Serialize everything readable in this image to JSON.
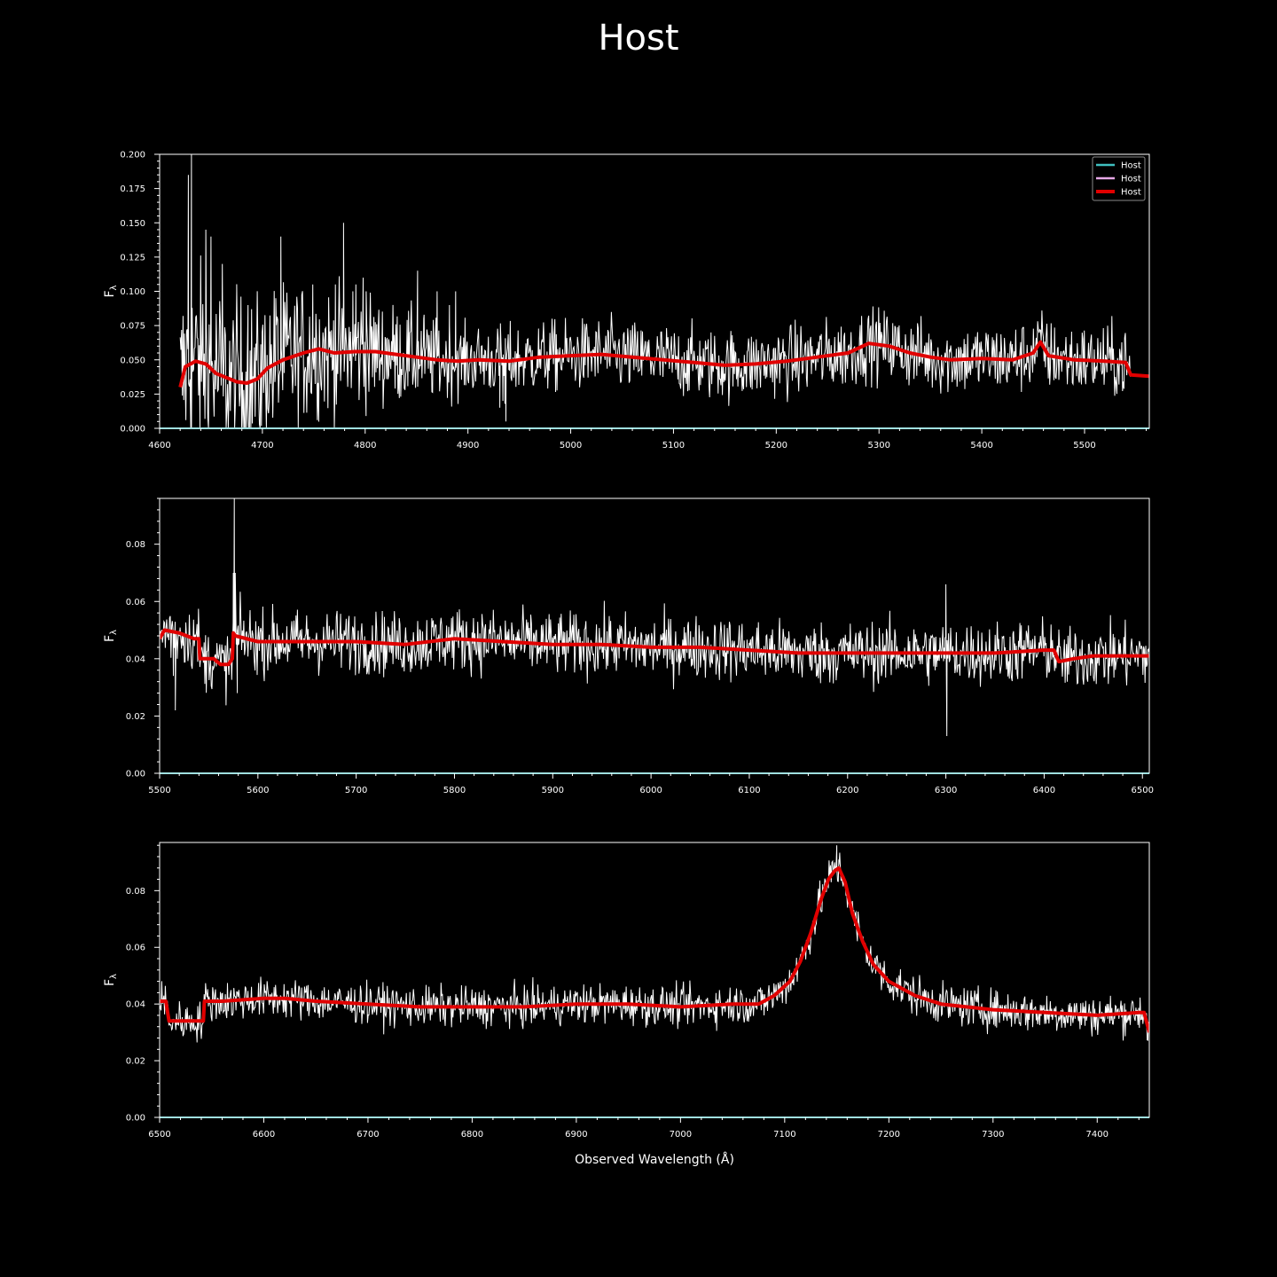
{
  "title": "Host",
  "colors": {
    "background": "#000000",
    "observed": "#ffffff",
    "model": "#e10000",
    "host_cyan": "#3fc0c0",
    "host_pink": "#e6a8e6"
  },
  "legend": {
    "location": "top-right",
    "entries": [
      {
        "label": "Host",
        "color": "#3fc0c0"
      },
      {
        "label": "Host",
        "color": "#e6a8e6"
      },
      {
        "label": "Host",
        "color": "#e10000"
      }
    ]
  },
  "chart_data": [
    {
      "type": "line",
      "xlabel": "",
      "ylabel": "F_λ",
      "xlim": [
        4600,
        5563
      ],
      "ylim": [
        0,
        0.2
      ],
      "xticks": [
        4600,
        4700,
        4800,
        4900,
        5000,
        5100,
        5200,
        5300,
        5400,
        5500
      ],
      "xtick_labels": [
        "4600",
        "4700",
        "4800",
        "4900",
        "5000",
        "5100",
        "5200",
        "5300",
        "5400",
        "5500"
      ],
      "yticks": [
        0,
        0.025,
        0.05,
        0.075,
        0.1,
        0.125,
        0.15,
        0.175,
        0.2
      ],
      "ytick_labels": [
        "0.000",
        "0.025",
        "0.050",
        "0.075",
        "0.100",
        "0.125",
        "0.150",
        "0.175",
        "0.200"
      ],
      "data_start": 4620,
      "show_legend": true,
      "series": [
        {
          "color": "#e10000",
          "x": [
            4620,
            4625,
            4635,
            4645,
            4655,
            4665,
            4675,
            4685,
            4695,
            4705,
            4720,
            4740,
            4755,
            4770,
            4790,
            4810,
            4830,
            4850,
            4870,
            4890,
            4910,
            4940,
            4970,
            5000,
            5030,
            5060,
            5090,
            5120,
            5150,
            5180,
            5210,
            5240,
            5270,
            5290,
            5310,
            5330,
            5350,
            5370,
            5400,
            5430,
            5450,
            5457,
            5465,
            5490,
            5520,
            5540,
            5545,
            5563
          ],
          "y": [
            0.03,
            0.045,
            0.049,
            0.047,
            0.04,
            0.037,
            0.034,
            0.033,
            0.036,
            0.044,
            0.05,
            0.055,
            0.058,
            0.055,
            0.056,
            0.056,
            0.054,
            0.052,
            0.05,
            0.049,
            0.05,
            0.049,
            0.052,
            0.053,
            0.054,
            0.052,
            0.05,
            0.048,
            0.046,
            0.047,
            0.049,
            0.052,
            0.055,
            0.062,
            0.06,
            0.055,
            0.052,
            0.05,
            0.051,
            0.05,
            0.055,
            0.063,
            0.053,
            0.05,
            0.049,
            0.048,
            0.039,
            0.038
          ]
        },
        {
          "color": "#ffffff",
          "x": [
            4628,
            4631,
            4645,
            4650,
            4661,
            4675,
            4686,
            4713,
            4718,
            4749,
            4771,
            4779,
            4788,
            4791,
            4798,
            4801,
            4807,
            4823,
            4851,
            4857,
            4870,
            4882,
            4888,
            4931,
            4934,
            4936,
            4937
          ],
          "y": [
            0.185,
            0.2,
            0.145,
            0.14,
            0.12,
            0.1,
            0.09,
            0.095,
            0.14,
            0.105,
            0.105,
            0.15,
            0.1,
            0.105,
            0.11,
            0.1,
            0.07,
            0.065,
            0.115,
            0.08,
            0.1,
            0.09,
            0.1,
            0.015,
            0.02,
            0.018,
            0.005
          ]
        }
      ]
    },
    {
      "type": "line",
      "xlabel": "",
      "ylabel": "F_λ",
      "xlim": [
        5500,
        6507
      ],
      "ylim": [
        0,
        0.096
      ],
      "xticks": [
        5500,
        5600,
        5700,
        5800,
        5900,
        6000,
        6100,
        6200,
        6300,
        6400,
        6500
      ],
      "xtick_labels": [
        "5500",
        "5600",
        "5700",
        "5800",
        "5900",
        "6000",
        "6100",
        "6200",
        "6300",
        "6400",
        "6500"
      ],
      "yticks": [
        0,
        0.02,
        0.04,
        0.06,
        0.08
      ],
      "ytick_labels": [
        "0.00",
        "0.02",
        "0.04",
        "0.06",
        "0.08"
      ],
      "data_start": 5500,
      "show_legend": false,
      "series": [
        {
          "color": "#e10000",
          "x": [
            5500,
            5505,
            5520,
            5535,
            5540,
            5541,
            5555,
            5562,
            5570,
            5574,
            5575,
            5577,
            5600,
            5650,
            5700,
            5750,
            5800,
            5850,
            5900,
            5950,
            6000,
            6050,
            6100,
            6150,
            6200,
            6250,
            6300,
            6350,
            6400,
            6410,
            6415,
            6430,
            6450,
            6500,
            6507
          ],
          "y": [
            0.047,
            0.05,
            0.049,
            0.047,
            0.047,
            0.04,
            0.04,
            0.038,
            0.038,
            0.04,
            0.049,
            0.048,
            0.046,
            0.046,
            0.046,
            0.045,
            0.047,
            0.046,
            0.045,
            0.045,
            0.044,
            0.044,
            0.043,
            0.042,
            0.042,
            0.042,
            0.042,
            0.042,
            0.043,
            0.043,
            0.039,
            0.04,
            0.041,
            0.041,
            0.041
          ]
        },
        {
          "color": "#ffffff",
          "x": [
            5514,
            5516,
            5518,
            5575,
            5576,
            5577,
            5578,
            5579,
            5580,
            6299,
            6300,
            6301
          ],
          "y": [
            0.034,
            0.022,
            0.04,
            0.07,
            0.096,
            0.07,
            0.045,
            0.028,
            0.045,
            0.04,
            0.066,
            0.013
          ]
        }
      ]
    },
    {
      "type": "line",
      "xlabel": "Observed Wavelength (Å)",
      "ylabel": "F_λ",
      "xlim": [
        6500,
        7450
      ],
      "ylim": [
        0,
        0.097
      ],
      "xticks": [
        6500,
        6600,
        6700,
        6800,
        6900,
        7000,
        7100,
        7200,
        7300,
        7400
      ],
      "xtick_labels": [
        "6500",
        "6600",
        "6700",
        "6800",
        "6900",
        "7000",
        "7100",
        "7200",
        "7300",
        "7400"
      ],
      "yticks": [
        0,
        0.02,
        0.04,
        0.06,
        0.08
      ],
      "ytick_labels": [
        "0.00",
        "0.02",
        "0.04",
        "0.06",
        "0.08"
      ],
      "data_start": 6500,
      "show_legend": false,
      "series": [
        {
          "color": "#e10000",
          "x": [
            6500,
            6506,
            6509,
            6542,
            6543,
            6560,
            6600,
            6620,
            6650,
            6700,
            6750,
            6800,
            6850,
            6900,
            6950,
            7000,
            7050,
            7075,
            7090,
            7105,
            7115,
            7125,
            7135,
            7142,
            7148,
            7152,
            7158,
            7165,
            7175,
            7185,
            7200,
            7225,
            7250,
            7300,
            7350,
            7400,
            7440,
            7445,
            7450
          ],
          "y": [
            0.041,
            0.041,
            0.034,
            0.034,
            0.041,
            0.041,
            0.042,
            0.042,
            0.041,
            0.04,
            0.039,
            0.039,
            0.039,
            0.04,
            0.04,
            0.039,
            0.04,
            0.04,
            0.043,
            0.048,
            0.055,
            0.065,
            0.077,
            0.084,
            0.087,
            0.088,
            0.083,
            0.072,
            0.062,
            0.054,
            0.048,
            0.043,
            0.04,
            0.038,
            0.037,
            0.036,
            0.037,
            0.037,
            0.03
          ]
        },
        {
          "color": "#ffffff",
          "x": [
            7148,
            7150,
            7152
          ],
          "y": [
            0.09,
            0.096,
            0.091
          ]
        }
      ]
    }
  ]
}
